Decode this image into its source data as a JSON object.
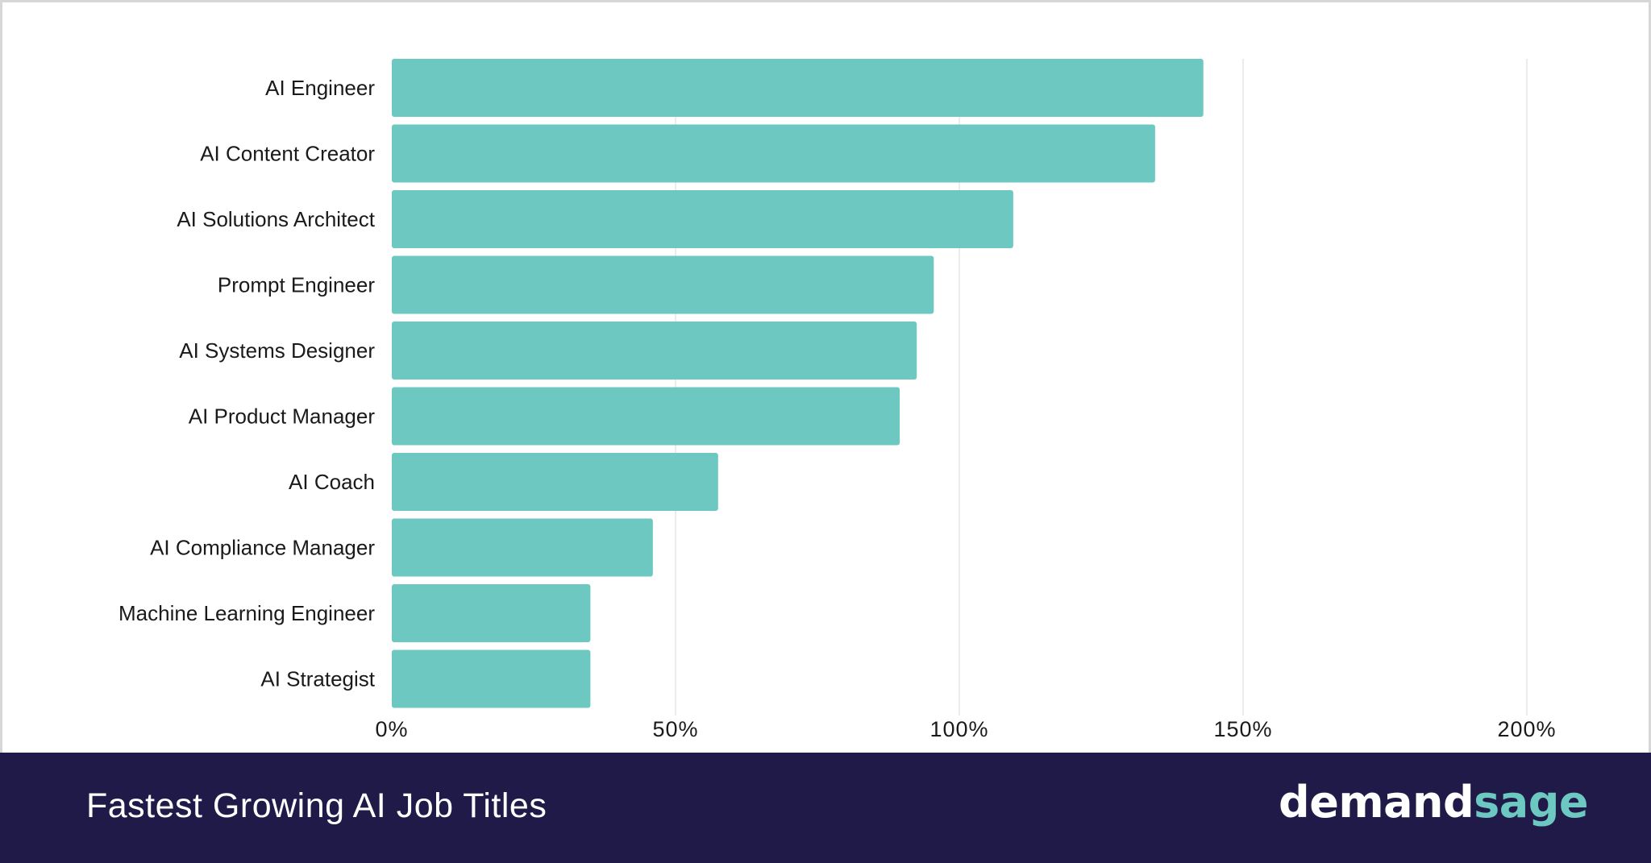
{
  "chart_data": {
    "type": "bar",
    "orientation": "horizontal",
    "categories": [
      "AI Engineer",
      "AI Content Creator",
      "AI Solutions Architect",
      "Prompt Engineer",
      "AI Systems Designer",
      "AI Product Manager",
      "AI Coach",
      "AI Compliance Manager",
      "Machine Learning Engineer",
      "AI Strategist"
    ],
    "values": [
      143,
      134.5,
      109.5,
      95.5,
      92.5,
      89.5,
      57.5,
      46,
      35,
      35
    ],
    "xlim": [
      0,
      200
    ],
    "xticks": [
      0,
      50,
      100,
      150,
      200
    ],
    "xtick_labels": [
      "0%",
      "50%",
      "100%",
      "150%",
      "200%"
    ],
    "grid": "vertical",
    "bar_color": "#6dc8c1",
    "grid_color": "#e6e6e6",
    "title": "Fastest Growing AI Job Titles"
  },
  "footer": {
    "title": "Fastest Growing AI Job Titles",
    "brand_part_1": "demand",
    "brand_part_2": "sage",
    "background": "#1f1a47",
    "brand_accent": "#6dc8c1"
  }
}
